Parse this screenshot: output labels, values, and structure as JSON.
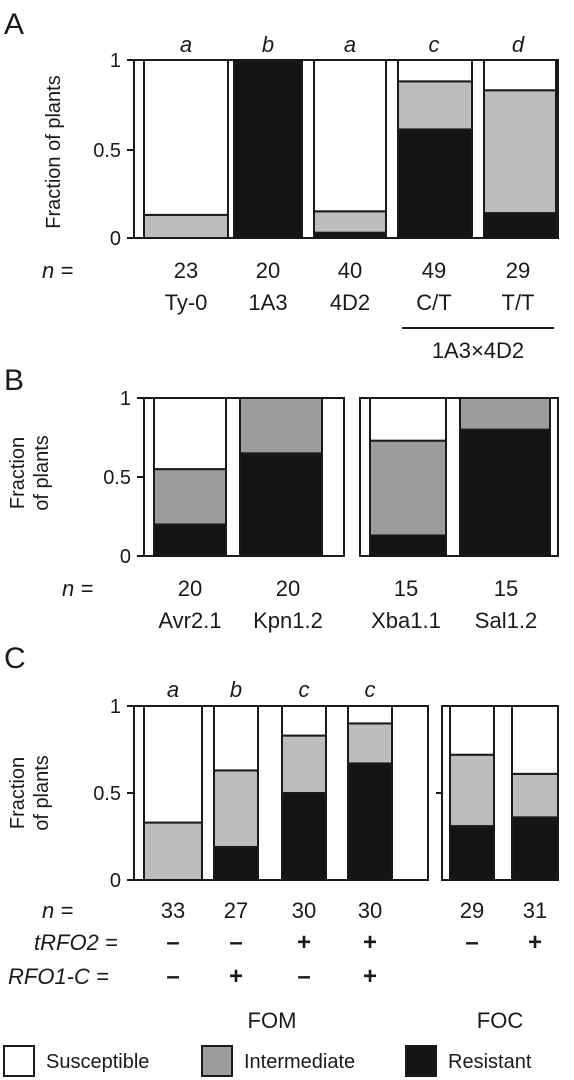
{
  "colors": {
    "susceptible": "#ffffff",
    "intermediate": "#bdbdbd",
    "intermediate_dark": "#9c9c9c",
    "resistant": "#151515",
    "stroke": "#1a1a1a"
  },
  "chart_data": [
    {
      "type": "bar",
      "panel": "A",
      "ylabel": "Fraction of plants",
      "ylim": [
        0,
        1
      ],
      "yticks": [
        "0",
        "0.5",
        "1"
      ],
      "n_label": "n =",
      "categories": [
        "Ty-0",
        "1A3",
        "4D2",
        "C/T",
        "T/T"
      ],
      "n": [
        "23",
        "20",
        "40",
        "49",
        "29"
      ],
      "letters": [
        "a",
        "b",
        "a",
        "c",
        "d"
      ],
      "group_label": "1A3×4D2",
      "series": [
        {
          "name": "Resistant",
          "values": [
            0.0,
            1.0,
            0.03,
            0.61,
            0.14
          ]
        },
        {
          "name": "Intermediate",
          "values": [
            0.13,
            0.0,
            0.12,
            0.27,
            0.69
          ]
        },
        {
          "name": "Susceptible",
          "values": [
            0.87,
            0.0,
            0.85,
            0.12,
            0.17
          ]
        }
      ]
    },
    {
      "type": "bar",
      "panel": "B",
      "ylabel": [
        "Fraction",
        "of plants"
      ],
      "ylim": [
        0,
        1
      ],
      "yticks": [
        "0",
        "0.5",
        "1"
      ],
      "n_label": "n =",
      "categories": [
        "Avr2.1",
        "Kpn1.2",
        "Xba1.1",
        "Sal1.2"
      ],
      "n": [
        "20",
        "20",
        "15",
        "15"
      ],
      "series": [
        {
          "name": "Resistant",
          "values": [
            0.2,
            0.65,
            0.13,
            0.8
          ]
        },
        {
          "name": "Intermediate",
          "values": [
            0.35,
            0.35,
            0.6,
            0.2
          ]
        },
        {
          "name": "Susceptible",
          "values": [
            0.45,
            0.0,
            0.27,
            0.0
          ]
        }
      ]
    },
    {
      "type": "bar",
      "panel": "C",
      "ylabel": [
        "Fraction",
        "of plants"
      ],
      "ylim": [
        0,
        1
      ],
      "yticks": [
        "0",
        "0.5",
        "1"
      ],
      "n_label": "n =",
      "n": [
        "33",
        "27",
        "30",
        "30",
        "29",
        "31"
      ],
      "letters": [
        "a",
        "b",
        "c",
        "c",
        "",
        ""
      ],
      "row_labels": [
        "tRFO2 =",
        "RFO1-C ="
      ],
      "tRFO2": [
        "–",
        "–",
        "+",
        "+",
        "–",
        "+"
      ],
      "RFO1_C": [
        "–",
        "+",
        "–",
        "+"
      ],
      "group_labels": [
        "FOM",
        "FOC"
      ],
      "series": [
        {
          "name": "Resistant",
          "values": [
            0.0,
            0.19,
            0.5,
            0.67,
            0.31,
            0.36
          ]
        },
        {
          "name": "Intermediate",
          "values": [
            0.33,
            0.44,
            0.33,
            0.23,
            0.41,
            0.25
          ]
        },
        {
          "name": "Susceptible",
          "values": [
            0.67,
            0.37,
            0.17,
            0.1,
            0.28,
            0.39
          ]
        }
      ]
    }
  ],
  "legend": [
    "Susceptible",
    "Intermediate",
    "Resistant"
  ]
}
